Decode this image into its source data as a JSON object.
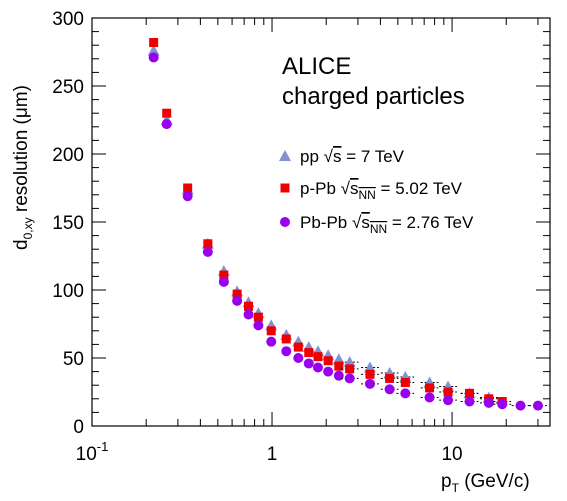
{
  "chart_data": {
    "type": "scatter",
    "x_scale": "log",
    "xlim": [
      0.1,
      35
    ],
    "ylim": [
      0,
      300
    ],
    "xlabel": {
      "main": "p",
      "sub": "T",
      "rest": " (GeV/c)"
    },
    "ylabel": {
      "main": "d",
      "sub": "0,xy",
      "rest": " resolution (μm)"
    },
    "x_ticks": [
      {
        "value": 0.1,
        "base": "10",
        "exp": "-1"
      },
      {
        "value": 1,
        "base": "1",
        "exp": ""
      },
      {
        "value": 10,
        "base": "10",
        "exp": ""
      }
    ],
    "y_ticks": [
      {
        "value": 0,
        "label": "0"
      },
      {
        "value": 50,
        "label": "50"
      },
      {
        "value": 100,
        "label": "100"
      },
      {
        "value": 150,
        "label": "150"
      },
      {
        "value": 200,
        "label": "200"
      },
      {
        "value": 250,
        "label": "250"
      },
      {
        "value": 300,
        "label": "300"
      }
    ],
    "annotations": [
      "ALICE",
      "charged particles"
    ],
    "legend_position": "right, middle",
    "series": [
      {
        "name": "pp √s = 7 TeV",
        "legend": {
          "pre": "pp ",
          "rad": "s",
          "radsub": "",
          "post": " = 7 TeV"
        },
        "marker": "triangle",
        "color": "#7f93d3",
        "x": [
          0.22,
          0.26,
          0.34,
          0.44,
          0.54,
          0.64,
          0.74,
          0.84,
          0.99,
          1.2,
          1.4,
          1.6,
          1.8,
          2.05,
          2.35,
          2.7,
          3.5,
          4.5,
          5.5,
          7.5,
          9.5,
          12.5,
          16
        ],
        "y": [
          276,
          225,
          174,
          134,
          114,
          99,
          91,
          83,
          74,
          67,
          62,
          58,
          55,
          52,
          49,
          47,
          43,
          39,
          36,
          32,
          29,
          24,
          21
        ]
      },
      {
        "name": "p-Pb √sNN = 5.02 TeV",
        "legend": {
          "pre": "p-Pb ",
          "rad": "s",
          "radsub": "NN",
          "post": " = 5.02 TeV"
        },
        "marker": "square",
        "color": "#ee0000",
        "x": [
          0.22,
          0.26,
          0.34,
          0.44,
          0.54,
          0.64,
          0.74,
          0.84,
          0.99,
          1.2,
          1.4,
          1.6,
          1.8,
          2.05,
          2.35,
          2.7,
          3.5,
          4.5,
          5.5,
          7.5,
          9.5,
          12.5,
          16,
          19
        ],
        "y": [
          282,
          230,
          175,
          134,
          111,
          97,
          88,
          80,
          70,
          64,
          58,
          54,
          51,
          48,
          44,
          42,
          38,
          35,
          32,
          28,
          25,
          24,
          20,
          18
        ]
      },
      {
        "name": "Pb-Pb √sNN = 2.76 TeV",
        "legend": {
          "pre": "Pb-Pb ",
          "rad": "s",
          "radsub": "NN",
          "post": " = 2.76 TeV"
        },
        "marker": "circle",
        "color": "#9900ee",
        "x": [
          0.22,
          0.26,
          0.34,
          0.44,
          0.54,
          0.64,
          0.74,
          0.84,
          0.99,
          1.2,
          1.4,
          1.6,
          1.8,
          2.05,
          2.35,
          2.7,
          3.5,
          4.5,
          5.5,
          7.5,
          9.5,
          12.5,
          16,
          19,
          24,
          30
        ],
        "y": [
          271,
          222,
          169,
          128,
          106,
          92,
          82,
          74,
          62,
          55,
          50,
          46,
          43,
          40,
          37,
          35,
          31,
          27,
          24,
          21,
          19,
          18,
          17,
          16,
          15,
          15
        ]
      }
    ]
  }
}
